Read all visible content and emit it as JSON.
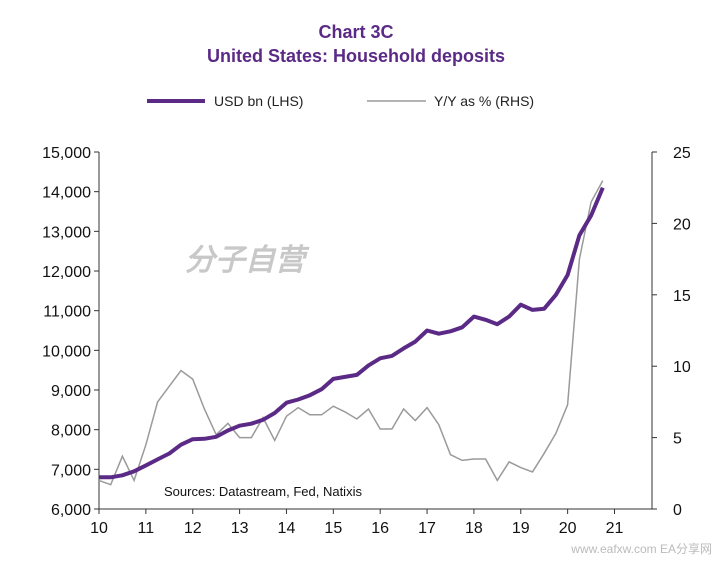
{
  "chart_data": {
    "type": "line",
    "title": "Chart 3C",
    "subtitle": "United States: Household deposits",
    "legend": [
      {
        "name": "USD bn (LHS)",
        "color": "#5b2a86"
      },
      {
        "name": "Y/Y as % (RHS)",
        "color": "#9a9a9a"
      }
    ],
    "legend_placement": "top",
    "x_ticks": [
      "10",
      "11",
      "12",
      "13",
      "14",
      "15",
      "16",
      "17",
      "18",
      "19",
      "20",
      "21"
    ],
    "x_range": [
      2010,
      2021.8
    ],
    "y_left_range": [
      6000,
      15000
    ],
    "y_left_ticks": [
      "6,000",
      "7,000",
      "8,000",
      "9,000",
      "10,000",
      "11,000",
      "12,000",
      "13,000",
      "14,000",
      "15,000"
    ],
    "y_right_range": [
      0,
      25
    ],
    "y_right_ticks": [
      "0",
      "5",
      "10",
      "15",
      "20",
      "25"
    ],
    "grid": false,
    "series": [
      {
        "name": "USD bn (LHS)",
        "axis": "left",
        "color": "#5b2a86",
        "x": [
          2010.0,
          2010.25,
          2010.5,
          2010.75,
          2011.0,
          2011.25,
          2011.5,
          2011.75,
          2012.0,
          2012.25,
          2012.5,
          2012.75,
          2013.0,
          2013.25,
          2013.5,
          2013.75,
          2014.0,
          2014.25,
          2014.5,
          2014.75,
          2015.0,
          2015.25,
          2015.5,
          2015.75,
          2016.0,
          2016.25,
          2016.5,
          2016.75,
          2017.0,
          2017.25,
          2017.5,
          2017.75,
          2018.0,
          2018.25,
          2018.5,
          2018.75,
          2019.0,
          2019.25,
          2019.5,
          2019.75,
          2020.0,
          2020.25,
          2020.5,
          2020.75
        ],
        "values": [
          6800,
          6800,
          6850,
          6950,
          7100,
          7250,
          7400,
          7620,
          7760,
          7770,
          7820,
          7980,
          8100,
          8150,
          8250,
          8420,
          8680,
          8760,
          8870,
          9020,
          9280,
          9330,
          9380,
          9620,
          9800,
          9860,
          10050,
          10220,
          10500,
          10420,
          10480,
          10580,
          10850,
          10770,
          10660,
          10850,
          11150,
          11020,
          11050,
          11400,
          11900,
          12900,
          13400,
          14100
        ]
      },
      {
        "name": "Y/Y as % (RHS)",
        "axis": "right",
        "color": "#9a9a9a",
        "x": [
          2010.0,
          2010.25,
          2010.5,
          2010.75,
          2011.0,
          2011.25,
          2011.5,
          2011.75,
          2012.0,
          2012.25,
          2012.5,
          2012.75,
          2013.0,
          2013.25,
          2013.5,
          2013.75,
          2014.0,
          2014.25,
          2014.5,
          2014.75,
          2015.0,
          2015.25,
          2015.5,
          2015.75,
          2016.0,
          2016.25,
          2016.5,
          2016.75,
          2017.0,
          2017.25,
          2017.5,
          2017.75,
          2018.0,
          2018.25,
          2018.5,
          2018.75,
          2019.0,
          2019.25,
          2019.5,
          2019.75,
          2020.0,
          2020.25,
          2020.5,
          2020.75
        ],
        "values": [
          2.0,
          1.7,
          3.7,
          2.0,
          4.5,
          7.5,
          8.6,
          9.7,
          9.1,
          7.0,
          5.2,
          6.0,
          5.0,
          5.0,
          6.4,
          4.8,
          6.5,
          7.1,
          6.6,
          6.6,
          7.2,
          6.8,
          6.3,
          7.0,
          5.6,
          5.6,
          7.0,
          6.2,
          7.1,
          5.9,
          3.8,
          3.4,
          3.5,
          3.5,
          2.0,
          3.3,
          2.9,
          2.6,
          3.9,
          5.3,
          7.3,
          17.5,
          21.5,
          23.0
        ]
      }
    ],
    "annotation": "Sources:  Datastream,  Fed, Natixis",
    "watermark": "分子自营",
    "footer_watermark": "www.eafxw.com   EA分享网"
  }
}
